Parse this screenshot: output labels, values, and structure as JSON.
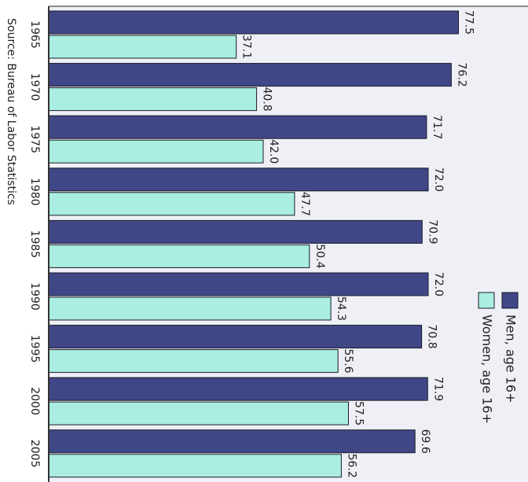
{
  "chart_data": {
    "type": "bar",
    "orientation": "horizontal",
    "categories": [
      "1965",
      "1970",
      "1975",
      "1980",
      "1985",
      "1990",
      "1995",
      "2000",
      "2005"
    ],
    "series": [
      {
        "name": "Men, age 16+",
        "color": "#3f4787",
        "values": [
          77.5,
          76.2,
          71.7,
          72.0,
          70.9,
          72.0,
          70.8,
          71.9,
          69.6
        ],
        "value_labels": [
          "77.5",
          "76.2",
          "71.7",
          "72.0",
          "70.9",
          "72.0",
          "70.8",
          "71.9",
          "69.6"
        ]
      },
      {
        "name": "Women, age 16+",
        "color": "#a9eee0",
        "values": [
          37.1,
          40.8,
          42.0,
          47.7,
          50.4,
          54.3,
          55.6,
          57.5,
          56.2
        ],
        "value_labels": [
          "37.1",
          "40.8",
          "42.0",
          "47.7",
          "50.4",
          "54.3",
          "55.6",
          "57.5",
          "56.2"
        ]
      }
    ],
    "xlim": [
      3,
      90
    ],
    "source": "Source:  Bureau of Labor Statistics"
  }
}
